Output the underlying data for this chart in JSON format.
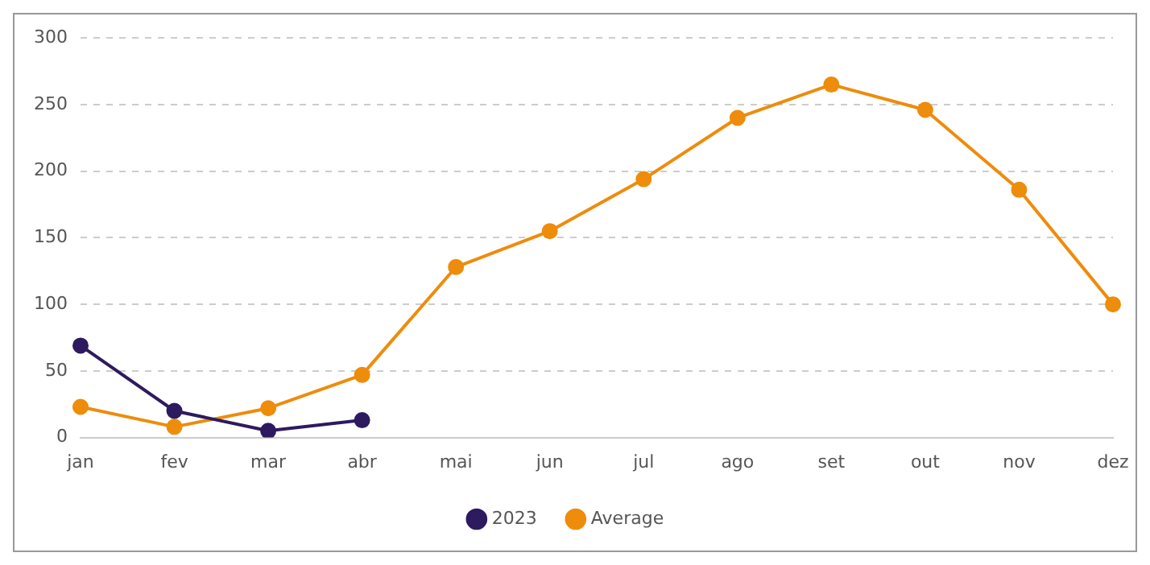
{
  "chart_data": {
    "type": "line",
    "categories": [
      "jan",
      "fev",
      "mar",
      "abr",
      "mai",
      "jun",
      "jul",
      "ago",
      "set",
      "out",
      "nov",
      "dez"
    ],
    "series": [
      {
        "name": "2023",
        "color": "#2e1a5f",
        "values": [
          69,
          20,
          5,
          13,
          null,
          null,
          null,
          null,
          null,
          null,
          null,
          null
        ]
      },
      {
        "name": "Average",
        "color": "#ee8c0c",
        "values": [
          23,
          8,
          22,
          47,
          128,
          155,
          194,
          240,
          265,
          246,
          186,
          100
        ]
      }
    ],
    "ylim": [
      0,
      300
    ],
    "yticks": [
      0,
      50,
      100,
      150,
      200,
      250,
      300
    ],
    "grid": "y",
    "legend": "bottom",
    "marker": "circle",
    "line_style": "solid"
  }
}
